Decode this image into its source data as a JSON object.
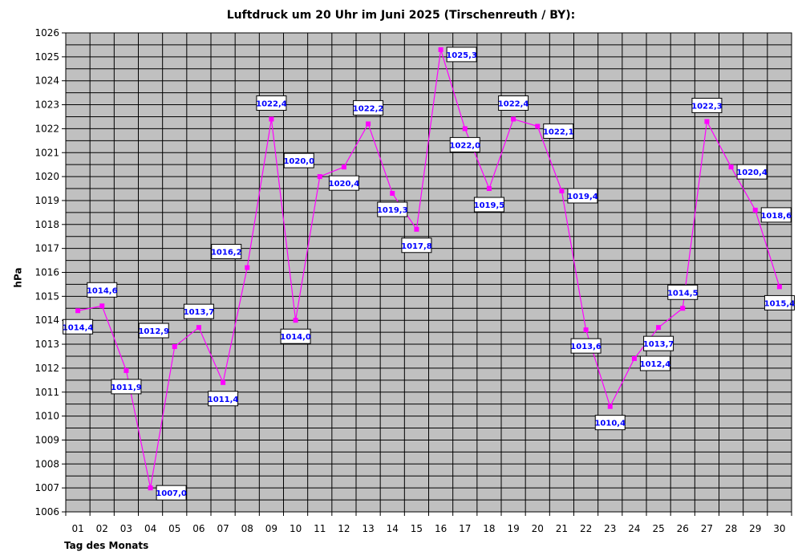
{
  "chart_data": {
    "type": "line",
    "title": "Luftdruck um 20 Uhr im Juni 2025 (Tirschenreuth / BY):",
    "xlabel": "Tag des Monats",
    "ylabel": "hPa",
    "ylim": [
      1006,
      1026
    ],
    "grid": true,
    "legend": "none",
    "categories": [
      "01",
      "02",
      "03",
      "04",
      "05",
      "06",
      "07",
      "08",
      "09",
      "10",
      "11",
      "12",
      "13",
      "14",
      "15",
      "16",
      "17",
      "18",
      "19",
      "20",
      "21",
      "22",
      "23",
      "24",
      "25",
      "26",
      "27",
      "28",
      "29",
      "30"
    ],
    "series": [
      {
        "values": [
          1014.4,
          1014.6,
          1011.9,
          1007.0,
          1012.9,
          1013.7,
          1011.4,
          1016.2,
          1022.4,
          1014.0,
          1020.0,
          1020.4,
          1022.2,
          1019.3,
          1017.8,
          1025.3,
          1022.0,
          1019.5,
          1022.4,
          1022.1,
          1019.4,
          1013.6,
          1010.4,
          1012.4,
          1013.7,
          1014.5,
          1022.3,
          1020.4,
          1018.6,
          1015.4
        ],
        "data_labels": [
          "1014,4",
          "1014,6",
          "1011,9",
          "1007,0",
          "1012,9",
          "1013,7",
          "1011,4",
          "1016,2",
          "1022,4",
          "1014,0",
          "1020,0",
          "1020,4",
          "1022,2",
          "1019,3",
          "1017,8",
          "1025,3",
          "1022,0",
          "1019,5",
          "1022,4",
          "1022,1",
          "1019,4",
          "1013,6",
          "1010,4",
          "1012,4",
          "1013,7",
          "1014,5",
          "1022,3",
          "1020,4",
          "1018,6",
          "1015,4"
        ]
      }
    ],
    "y_tick_labels": [
      "1006",
      "1007",
      "1008",
      "1009",
      "1010",
      "1011",
      "1012",
      "1013",
      "1014",
      "1015",
      "1016",
      "1017",
      "1018",
      "1019",
      "1020",
      "1021",
      "1022",
      "1023",
      "1024",
      "1025",
      "1026"
    ],
    "colors": {
      "plot_bg": "#c0c0c0",
      "grid": "#000000",
      "line": "#ff00ff",
      "label_text": "#0000ff",
      "label_bg": "#ffffff"
    }
  }
}
